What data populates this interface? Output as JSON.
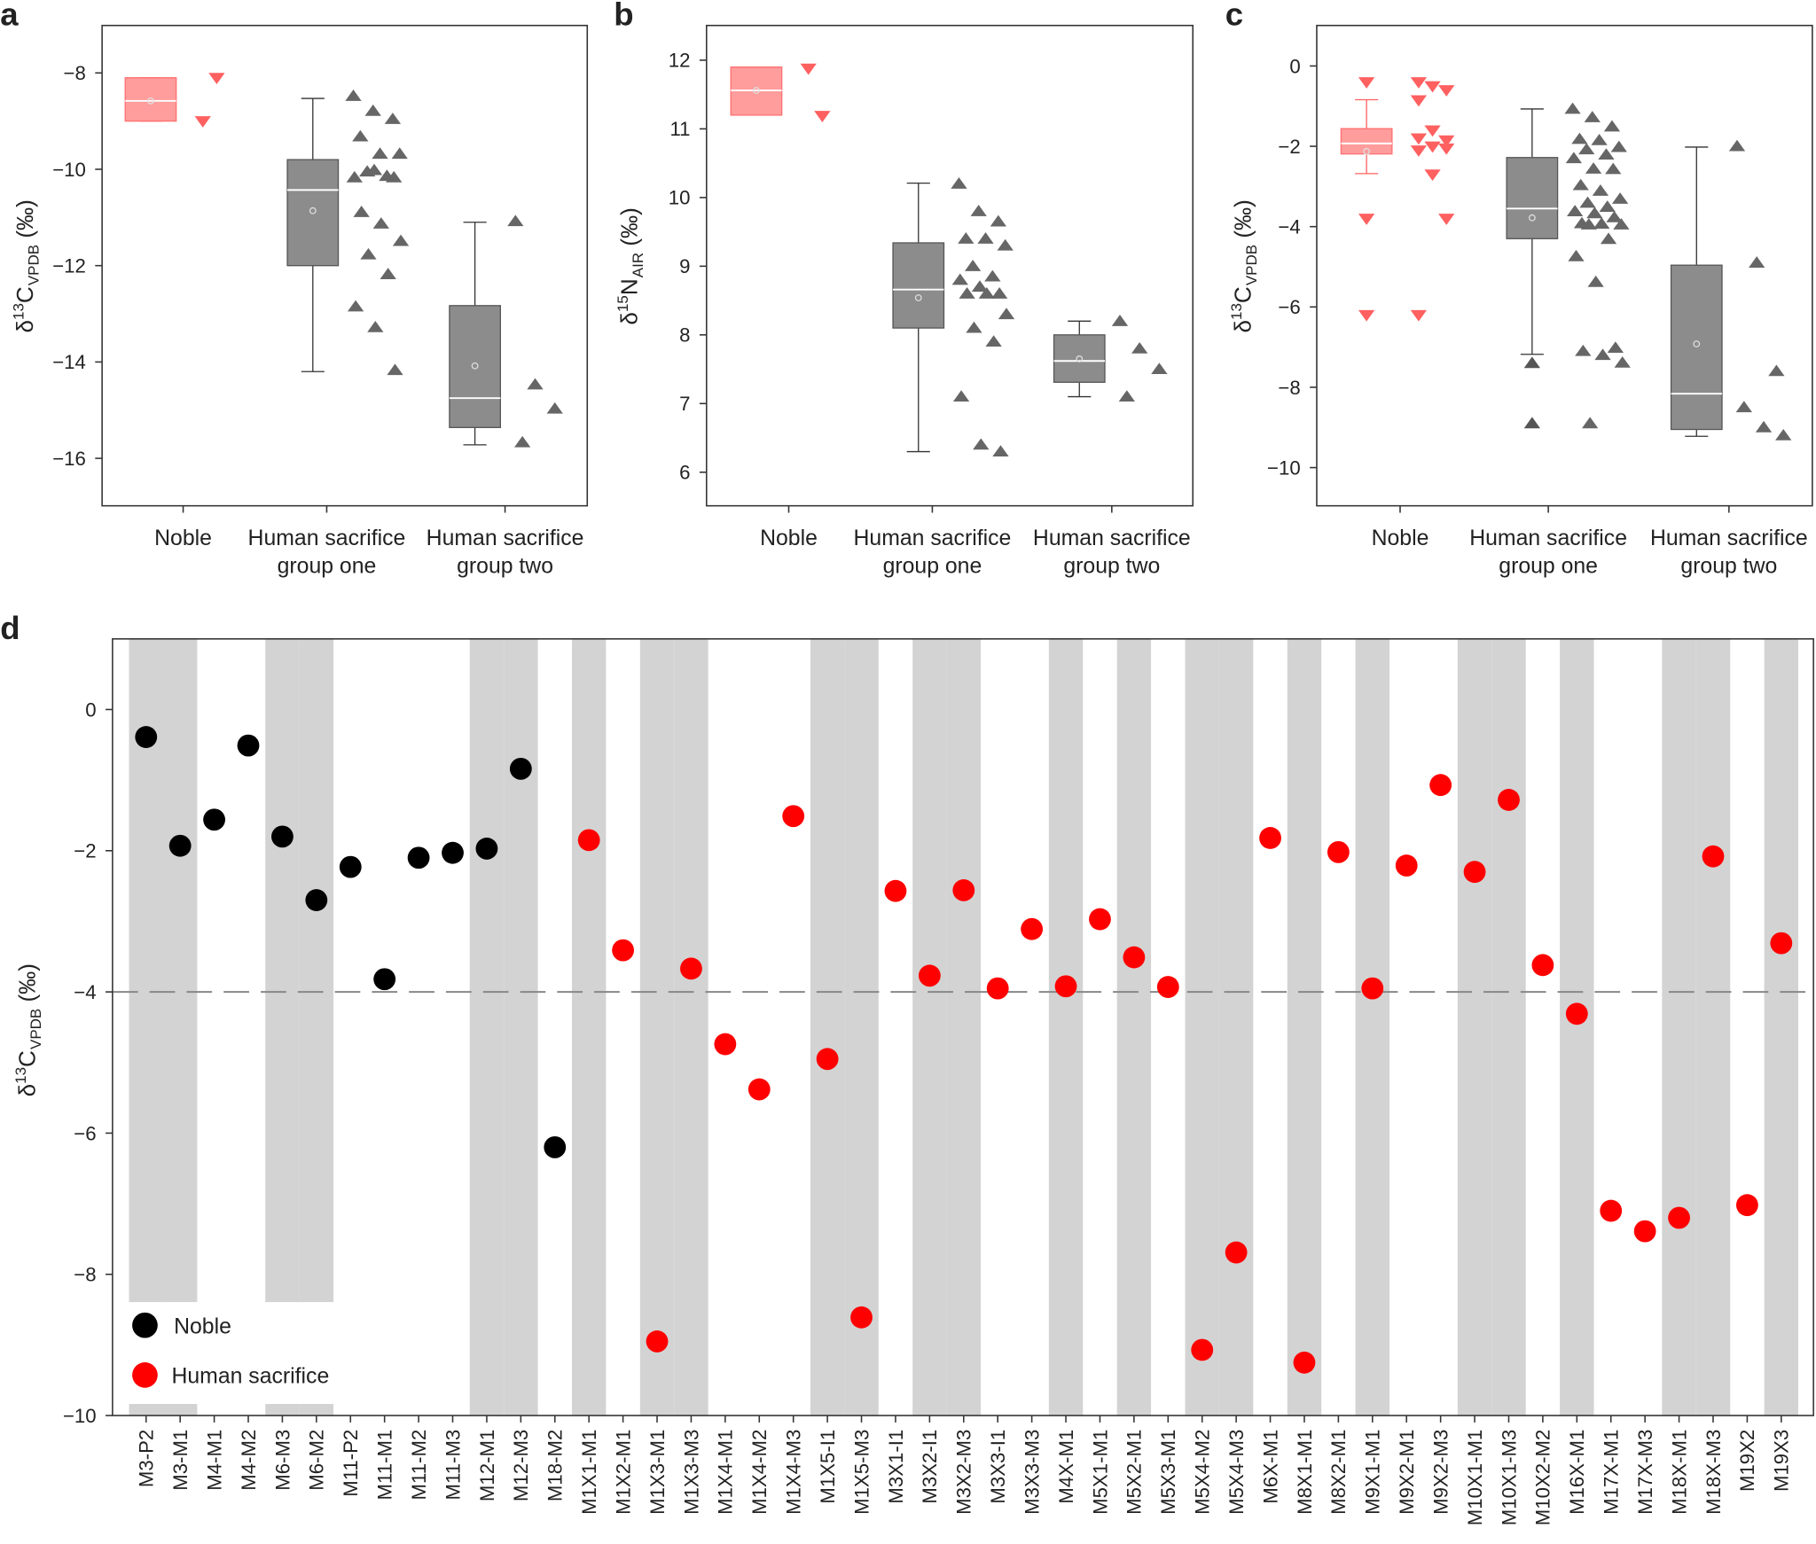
{
  "colors": {
    "noble": "#ff0000",
    "noble_box": "#ff9c9c",
    "sacrifice_box": "#8c8c8c",
    "sacrifice_marker": "#555555",
    "band": "#d3d3d3",
    "dashed": "#888888"
  },
  "chart_data": [
    {
      "panel": "a",
      "type": "box+scatter",
      "ylabel": "δ13C VPDB (‰)",
      "ylim": [
        -17,
        -7
      ],
      "yticks": [
        -8,
        -10,
        -12,
        -14,
        -16
      ],
      "categories": [
        "Noble",
        "Human sacrifice group one",
        "Human sacrifice group two"
      ],
      "category_lines": [
        [
          "Noble"
        ],
        [
          "Human sacrifice",
          "group one"
        ],
        [
          "Human sacrifice",
          "group two"
        ]
      ],
      "boxes": [
        {
          "q1": -9.0,
          "median": -8.58,
          "q3": -8.1,
          "mean": -8.58,
          "wlo": -9.0,
          "whi": -8.1,
          "outliers": []
        },
        {
          "q1": -12.0,
          "median": -10.43,
          "q3": -9.8,
          "mean": -10.86,
          "wlo": -14.2,
          "whi": -8.53,
          "outliers": []
        },
        {
          "q1": -15.36,
          "median": -14.75,
          "q3": -12.83,
          "mean": -14.08,
          "wlo": -15.72,
          "whi": -11.1,
          "outliers": []
        }
      ],
      "points": [
        [
          -9.0,
          -8.1
        ],
        [
          -8.48,
          -8.79,
          -8.96,
          -9.32,
          -9.68,
          -9.68,
          -10.05,
          -10.14,
          -10.17,
          -10.02,
          -10.17,
          -10.89,
          -11.13,
          -11.49,
          -11.77,
          -12.18,
          -12.85,
          -13.28,
          -14.17
        ],
        [
          -11.08,
          -14.47,
          -14.97,
          -15.67
        ]
      ]
    },
    {
      "panel": "b",
      "type": "box+scatter",
      "ylabel": "δ15N AIR (‰)",
      "ylim": [
        5.5,
        12.5
      ],
      "yticks": [
        12,
        11,
        10,
        9,
        8,
        7,
        6
      ],
      "categories": [
        "Noble",
        "Human sacrifice group one",
        "Human sacrifice group two"
      ],
      "category_lines": [
        [
          "Noble"
        ],
        [
          "Human sacrifice",
          "group one"
        ],
        [
          "Human sacrifice",
          "group two"
        ]
      ],
      "boxes": [
        {
          "q1": 11.2,
          "median": 11.56,
          "q3": 11.9,
          "mean": 11.56,
          "wlo": 11.2,
          "whi": 11.9,
          "outliers": []
        },
        {
          "q1": 8.1,
          "median": 8.66,
          "q3": 9.34,
          "mean": 8.54,
          "wlo": 6.3,
          "whi": 10.21,
          "outliers": []
        },
        {
          "q1": 7.31,
          "median": 7.62,
          "q3": 8.0,
          "mean": 7.65,
          "wlo": 7.1,
          "whi": 8.2,
          "outliers": []
        }
      ],
      "points": [
        [
          11.88,
          11.19
        ],
        [
          10.2,
          9.8,
          9.65,
          9.4,
          9.4,
          9.3,
          9.0,
          8.85,
          8.8,
          8.7,
          8.6,
          8.6,
          8.6,
          8.3,
          8.1,
          7.9,
          7.1,
          6.4,
          6.3
        ],
        [
          8.2,
          7.8,
          7.5,
          7.1
        ]
      ]
    },
    {
      "panel": "c",
      "type": "box+scatter",
      "ylabel": "δ13C VPDB (‰)",
      "ylim": [
        -11,
        1
      ],
      "yticks": [
        0,
        -2,
        -4,
        -6,
        -8,
        -10
      ],
      "categories": [
        "Noble",
        "Human sacrifice group one",
        "Human sacrifice group two"
      ],
      "category_lines": [
        [
          "Noble"
        ],
        [
          "Human sacrifice",
          "group one"
        ],
        [
          "Human sacrifice",
          "group two"
        ]
      ],
      "boxes": [
        {
          "q1": -2.19,
          "median": -1.93,
          "q3": -1.56,
          "mean": -2.13,
          "wlo": -2.68,
          "whi": -0.84,
          "outliers": [
            -0.4,
            -3.8,
            -6.2
          ]
        },
        {
          "q1": -4.3,
          "median": -3.55,
          "q3": -2.28,
          "mean": -3.78,
          "wlo": -7.18,
          "whi": -1.07,
          "outliers": [
            -7.4,
            -8.9
          ]
        },
        {
          "q1": -9.05,
          "median": -8.16,
          "q3": -4.96,
          "mean": -6.92,
          "wlo": -9.22,
          "whi": -2.02,
          "outliers": []
        }
      ],
      "points": [
        [
          -0.4,
          -0.5,
          -0.6,
          -0.85,
          -1.6,
          -1.85,
          -1.8,
          -2.0,
          -2.05,
          -2.1,
          -2.7,
          -3.8,
          -6.2
        ],
        [
          -1.07,
          -1.28,
          -1.51,
          -1.82,
          -1.85,
          -2.02,
          -2.08,
          -2.21,
          -2.3,
          -2.56,
          -2.57,
          -2.97,
          -3.11,
          -3.31,
          -3.41,
          -3.51,
          -3.62,
          -3.67,
          -3.77,
          -3.92,
          -3.93,
          -3.95,
          -3.95,
          -4.31,
          -4.74,
          -5.38,
          -7.02,
          -7.1,
          -7.2,
          -7.39,
          -8.9
        ],
        [
          -2.0,
          -4.9,
          -7.6,
          -8.5,
          -9.0,
          -9.2
        ]
      ]
    },
    {
      "panel": "d",
      "type": "scatter",
      "ylabel": "δ13C VPDB (‰)",
      "ylim": [
        -10,
        1
      ],
      "yticks": [
        0,
        -2,
        -4,
        -6,
        -8,
        -10
      ],
      "reference_line": -4,
      "legend": {
        "placement": "bottom-left",
        "entries": [
          "Noble",
          "Human sacrifice"
        ]
      },
      "categories": [
        "M3-P2",
        "M3-M1",
        "M4-M1",
        "M4-M2",
        "M6-M3",
        "M6-M2",
        "M11-P2",
        "M11-M1",
        "M11-M2",
        "M11-M3",
        "M12-M1",
        "M12-M3",
        "M18-M2",
        "M1X1-M1",
        "M1X2-M1",
        "M1X3-M1",
        "M1X3-M3",
        "M1X4-M1",
        "M1X4-M2",
        "M1X4-M3",
        "M1X5-I1",
        "M1X5-M3",
        "M3X1-I1",
        "M3X2-I1",
        "M3X2-M3",
        "M3X3-I1",
        "M3X3-M3",
        "M4X-M1",
        "M5X1-M1",
        "M5X2-M1",
        "M5X3-M1",
        "M5X4-M2",
        "M5X4-M3",
        "M6X-M1",
        "M8X1-M1",
        "M8X2-M1",
        "M9X1-M1",
        "M9X2-M1",
        "M9X2-M3",
        "M10X1-M1",
        "M10X1-M3",
        "M10X2-M2",
        "M16X-M1",
        "M17X-M1",
        "M17X-M3",
        "M18X-M1",
        "M18X-M3",
        "M19X2",
        "M19X3"
      ],
      "values": [
        -0.39,
        -1.93,
        -1.56,
        -0.51,
        -1.8,
        -2.7,
        -2.23,
        -3.82,
        -2.1,
        -2.03,
        -1.97,
        -0.84,
        -6.2,
        -1.85,
        -3.41,
        -8.95,
        -3.67,
        -4.74,
        -5.38,
        -1.51,
        -4.95,
        -8.61,
        -2.57,
        -3.77,
        -2.56,
        -3.95,
        -3.11,
        -3.92,
        -2.97,
        -3.51,
        -3.93,
        -9.07,
        -7.69,
        -1.82,
        -9.25,
        -2.02,
        -3.95,
        -2.21,
        -1.07,
        -2.3,
        -1.28,
        -3.62,
        -4.31,
        -7.1,
        -7.39,
        -7.2,
        -2.08,
        -7.02,
        -3.31
      ],
      "group": [
        "Noble",
        "Noble",
        "Noble",
        "Noble",
        "Noble",
        "Noble",
        "Noble",
        "Noble",
        "Noble",
        "Noble",
        "Noble",
        "Noble",
        "Noble",
        "Human sacrifice",
        "Human sacrifice",
        "Human sacrifice",
        "Human sacrifice",
        "Human sacrifice",
        "Human sacrifice",
        "Human sacrifice",
        "Human sacrifice",
        "Human sacrifice",
        "Human sacrifice",
        "Human sacrifice",
        "Human sacrifice",
        "Human sacrifice",
        "Human sacrifice",
        "Human sacrifice",
        "Human sacrifice",
        "Human sacrifice",
        "Human sacrifice",
        "Human sacrifice",
        "Human sacrifice",
        "Human sacrifice",
        "Human sacrifice",
        "Human sacrifice",
        "Human sacrifice",
        "Human sacrifice",
        "Human sacrifice",
        "Human sacrifice",
        "Human sacrifice",
        "Human sacrifice",
        "Human sacrifice",
        "Human sacrifice",
        "Human sacrifice",
        "Human sacrifice",
        "Human sacrifice",
        "Human sacrifice",
        "Human sacrifice"
      ]
    }
  ],
  "panel_labels": [
    "a",
    "b",
    "c",
    "d"
  ]
}
